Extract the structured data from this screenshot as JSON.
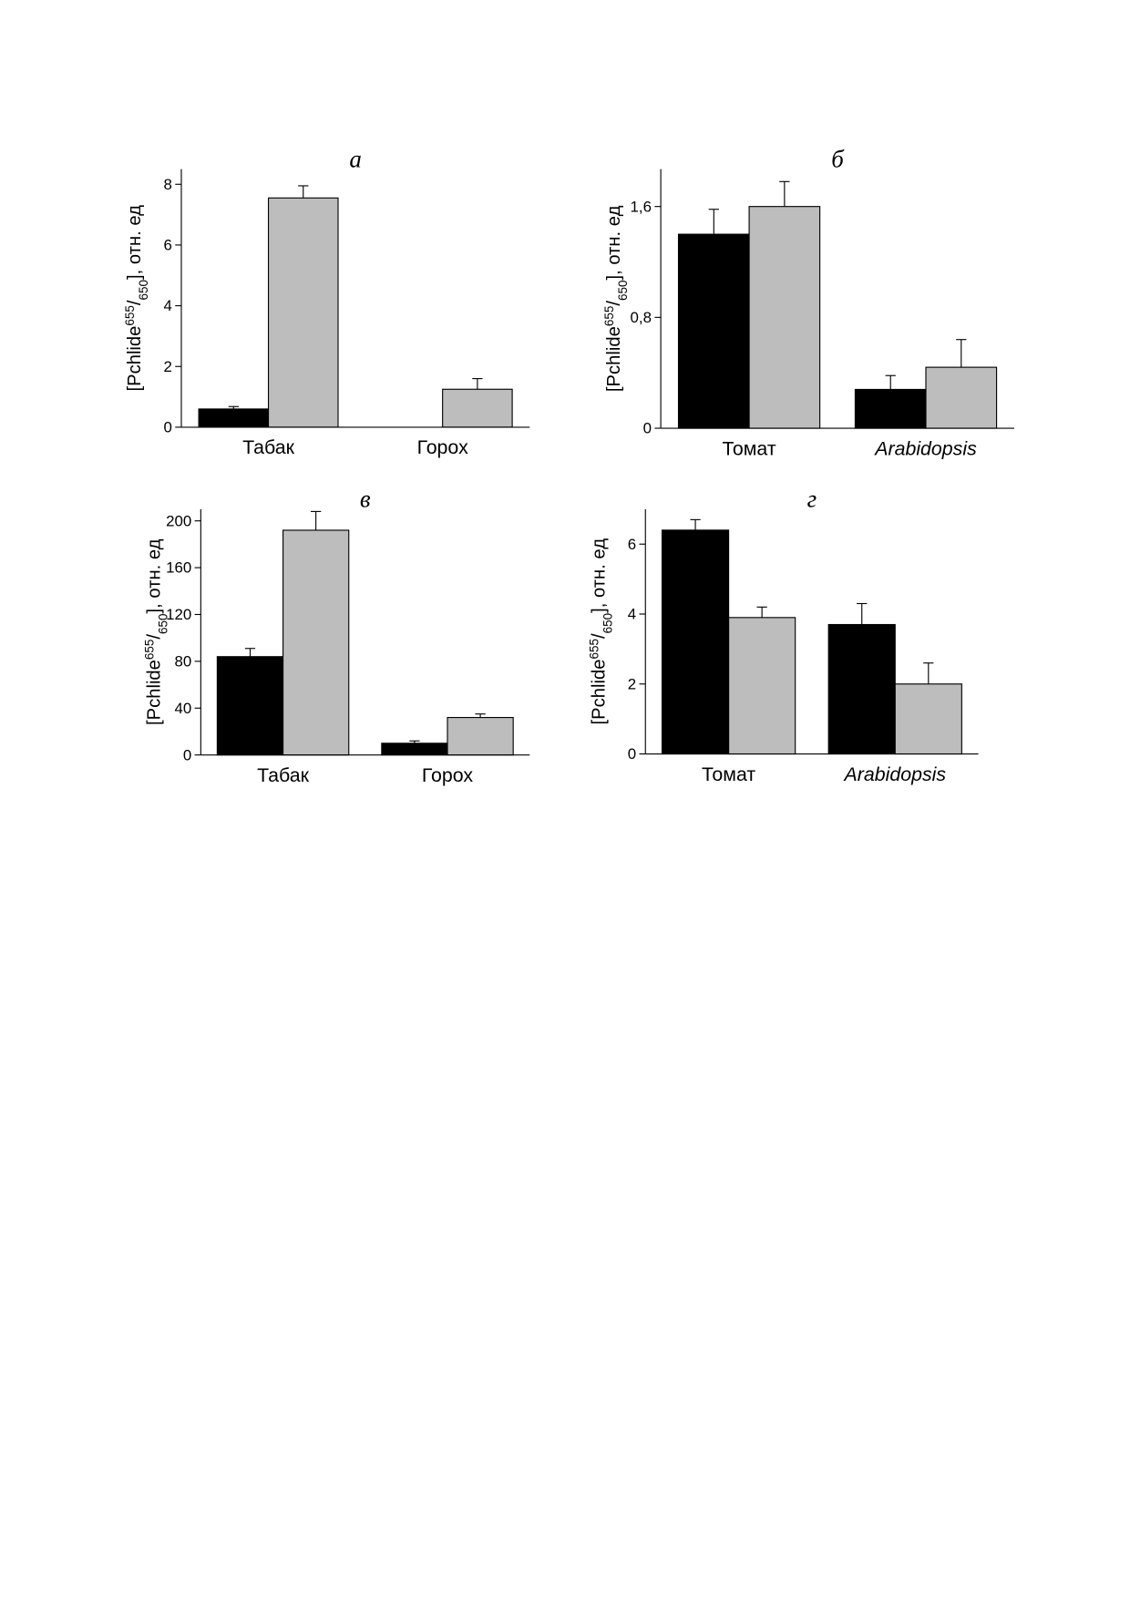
{
  "chart_data": [
    {
      "type": "bar",
      "title": "а",
      "ylabel_parts": [
        "[Pchlide",
        "655",
        "/",
        "650",
        "], отн. ед"
      ],
      "categories": [
        "Табак",
        "Горох"
      ],
      "italic_categories": [
        false,
        false
      ],
      "series": [
        {
          "color": "#000000",
          "values": [
            0.6,
            null
          ],
          "errors": [
            0.08,
            null
          ]
        },
        {
          "color": "#bdbdbd",
          "values": [
            7.55,
            1.25
          ],
          "errors": [
            0.4,
            0.35
          ]
        }
      ],
      "ylim": [
        0,
        8.5
      ],
      "yticks": [
        0,
        2,
        4,
        6,
        8
      ]
    },
    {
      "type": "bar",
      "title": "б",
      "ylabel_parts": [
        "[Pchlide",
        "655",
        "/",
        "650",
        "], отн. ед"
      ],
      "categories": [
        "Томат",
        "Arabidopsis"
      ],
      "italic_categories": [
        false,
        true
      ],
      "series": [
        {
          "color": "#000000",
          "values": [
            1.4,
            0.28
          ],
          "errors": [
            0.18,
            0.1
          ]
        },
        {
          "color": "#bdbdbd",
          "values": [
            1.6,
            0.44
          ],
          "errors": [
            0.18,
            0.2
          ]
        }
      ],
      "ylim": [
        0,
        1.87
      ],
      "yticks": [
        0,
        {
          "value": 0.8,
          "label": "0,8"
        },
        {
          "value": 1.6,
          "label": "1,6"
        }
      ]
    },
    {
      "type": "bar",
      "title": "в",
      "ylabel_parts": [
        "[Pchlide",
        "655",
        "/",
        "650",
        "], отн. ед"
      ],
      "categories": [
        "Табак",
        "Горох"
      ],
      "italic_categories": [
        false,
        false
      ],
      "series": [
        {
          "color": "#000000",
          "values": [
            84,
            10
          ],
          "errors": [
            7,
            2
          ]
        },
        {
          "color": "#bdbdbd",
          "values": [
            192,
            32
          ],
          "errors": [
            16,
            3
          ]
        }
      ],
      "ylim": [
        0,
        210
      ],
      "yticks": [
        0,
        40,
        80,
        120,
        160,
        200
      ]
    },
    {
      "type": "bar",
      "title": "г",
      "ylabel_parts": [
        "[Pchlide",
        "655",
        "/",
        "650",
        "], отн. ед"
      ],
      "categories": [
        "Томат",
        "Arabidopsis"
      ],
      "italic_categories": [
        false,
        true
      ],
      "series": [
        {
          "color": "#000000",
          "values": [
            6.4,
            3.7
          ],
          "errors": [
            0.3,
            0.6
          ]
        },
        {
          "color": "#bdbdbd",
          "values": [
            3.9,
            2.0
          ],
          "errors": [
            0.3,
            0.6
          ]
        }
      ],
      "ylim": [
        0,
        7
      ],
      "yticks": [
        0,
        2,
        4,
        6
      ]
    }
  ]
}
